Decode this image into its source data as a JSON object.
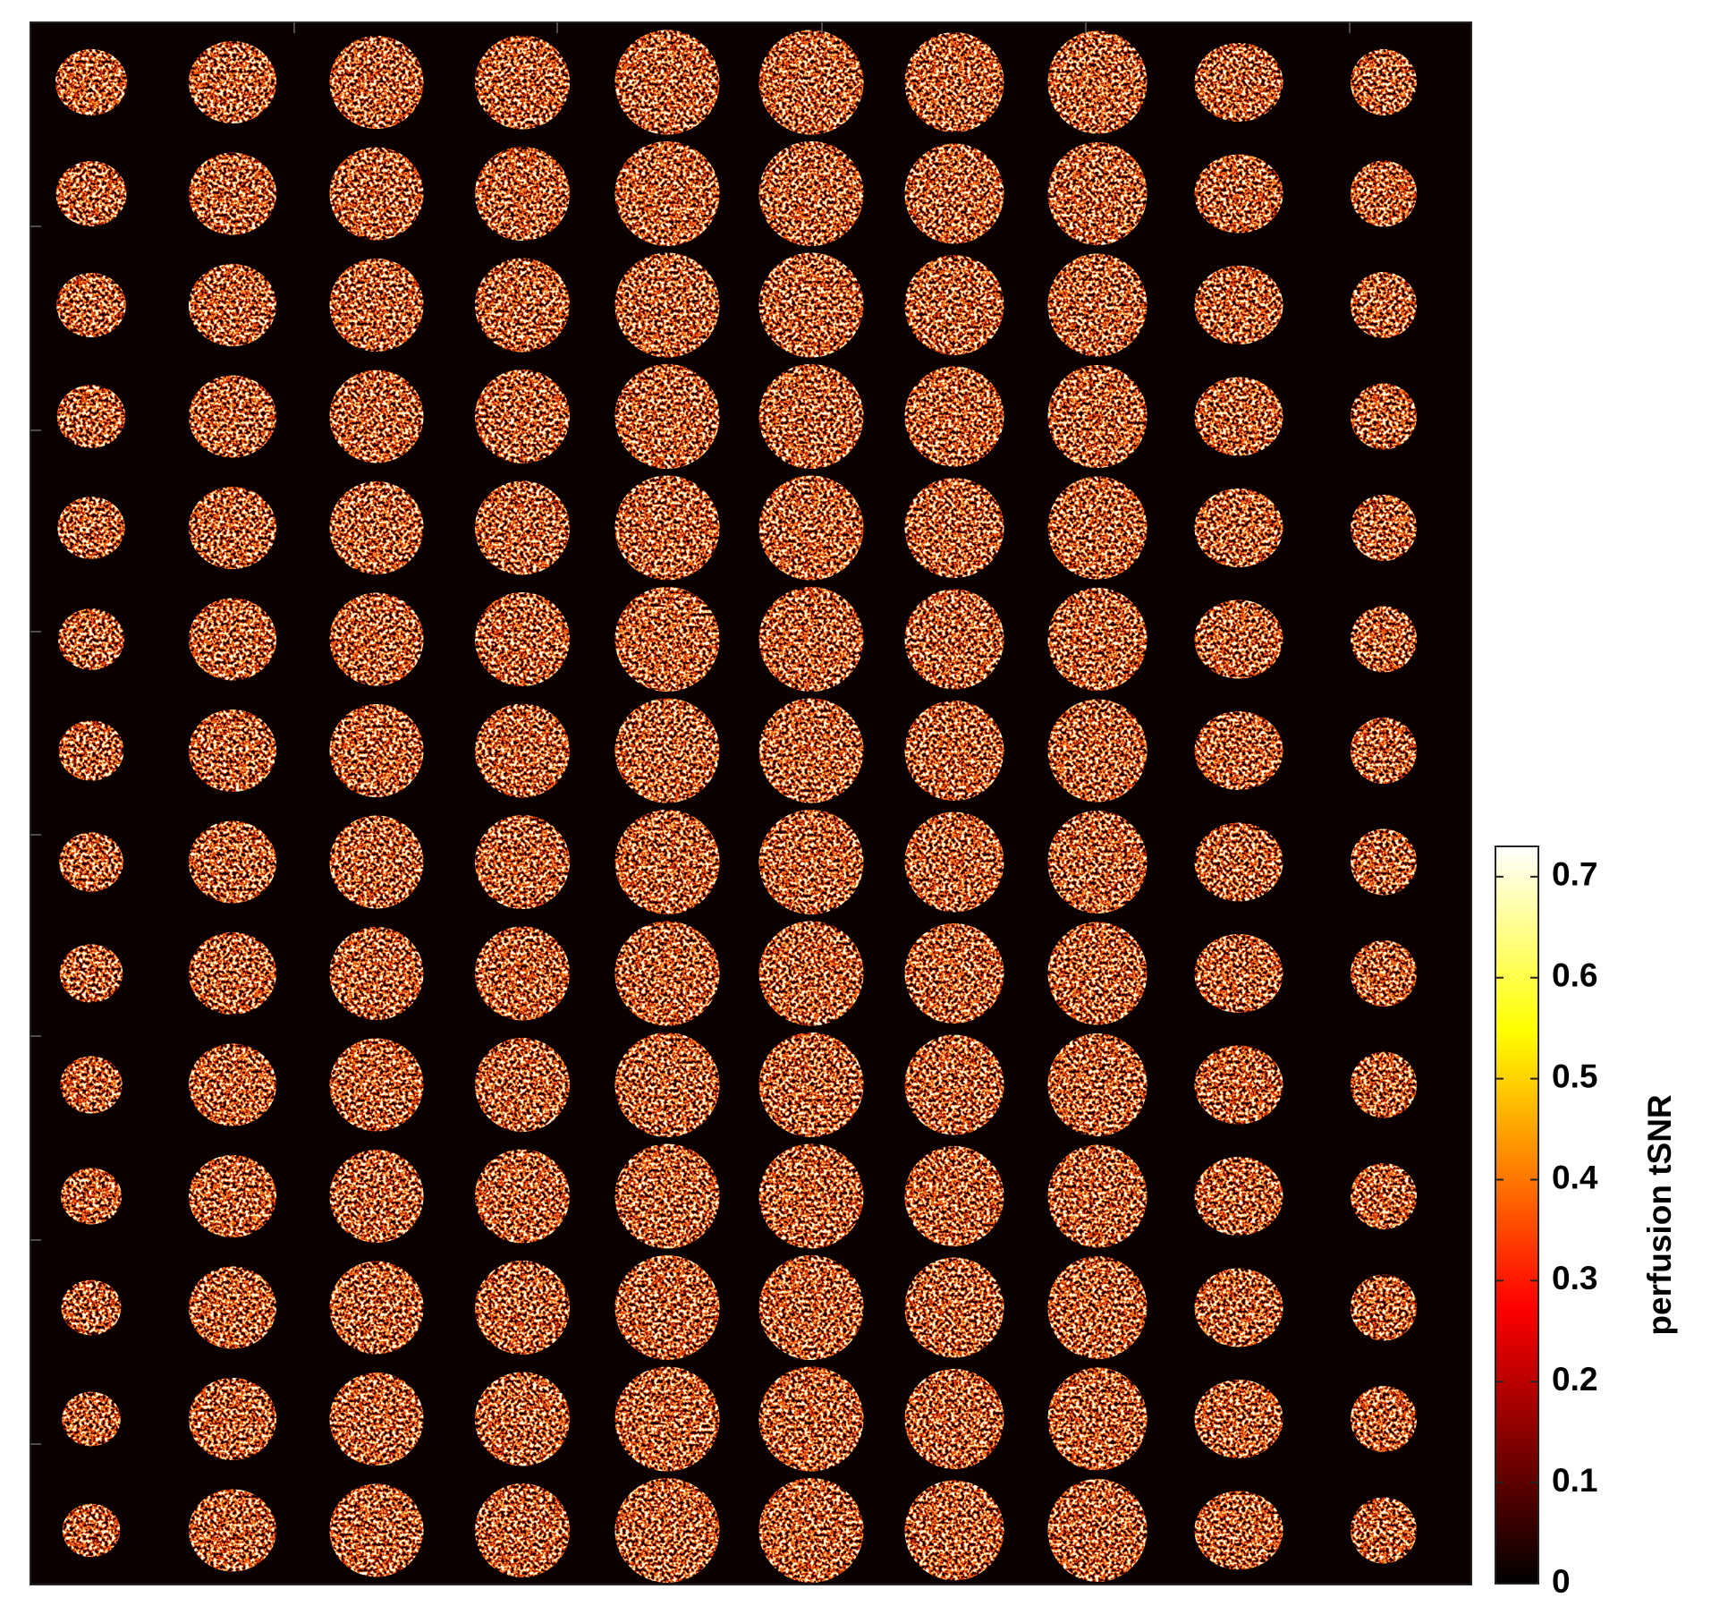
{
  "chart_data": {
    "type": "heatmap",
    "colorbar": {
      "label": "perfusion tSNR",
      "colormap": "hot",
      "clim": [
        0,
        0.73
      ],
      "ticks": [
        0,
        0.1,
        0.2,
        0.3,
        0.4,
        0.5,
        0.6,
        0.7
      ]
    }
  }
}
